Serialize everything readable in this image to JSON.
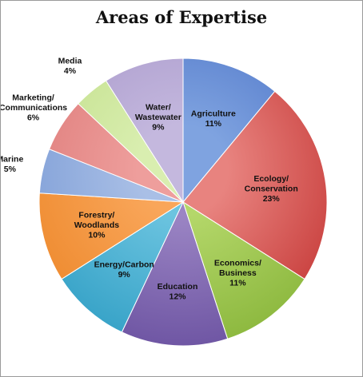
{
  "chart_data": {
    "type": "pie",
    "title": "Areas of Expertise",
    "slices": [
      {
        "label_lines": [
          "Agriculture",
          "11%"
        ],
        "value": 11,
        "color": "#7fa3e0",
        "dark": "#4f76c8"
      },
      {
        "label_lines": [
          "Ecology/",
          "Conservation",
          "23%"
        ],
        "value": 23,
        "color": "#e8837f",
        "dark": "#c73c3a"
      },
      {
        "label_lines": [
          "Economics/",
          "Business",
          "11%"
        ],
        "value": 11,
        "color": "#b4d76a",
        "dark": "#8cb83e"
      },
      {
        "label_lines": [
          "Education",
          "12%"
        ],
        "value": 12,
        "color": "#9b85c4",
        "dark": "#6e55a3"
      },
      {
        "label_lines": [
          "Energy/Carbon",
          "9%"
        ],
        "value": 9,
        "color": "#6cc4e0",
        "dark": "#36a2c7"
      },
      {
        "label_lines": [
          "Forestry/",
          "Woodlands",
          "10%"
        ],
        "value": 10,
        "color": "#f9a65a",
        "dark": "#ee8a2e"
      },
      {
        "label_lines": [
          "Marine",
          "5%"
        ],
        "value": 5,
        "color": "#a9bfe6",
        "dark": "#7d9dd6"
      },
      {
        "label_lines": [
          "Marketing/",
          "Communications",
          "6%"
        ],
        "value": 6,
        "color": "#ee9e9c",
        "dark": "#de7c7a"
      },
      {
        "label_lines": [
          "Media",
          "4%"
        ],
        "value": 4,
        "color": "#d9eeb0",
        "dark": "#c3e08c"
      },
      {
        "label_lines": [
          "Water/",
          "Wastewater",
          "9%"
        ],
        "value": 9,
        "color": "#c4b8de",
        "dark": "#a999cb"
      }
    ]
  }
}
